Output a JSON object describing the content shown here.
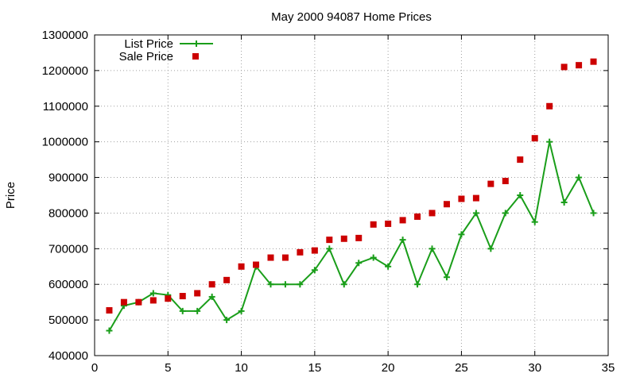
{
  "chart_data": {
    "type": "line",
    "title": "May 2000 94087 Home Prices",
    "xlabel": "",
    "ylabel": "Price",
    "xlim": [
      0,
      35
    ],
    "ylim": [
      400000,
      1300000
    ],
    "x_ticks": [
      "0",
      "5",
      "10",
      "15",
      "20",
      "25",
      "30",
      "35"
    ],
    "y_ticks": [
      "400000",
      "500000",
      "600000",
      "700000",
      "800000",
      "900000",
      "1000000",
      "1100000",
      "1200000",
      "1300000"
    ],
    "grid": true,
    "legend_position": "top-left",
    "series": [
      {
        "name": "List Price",
        "style": "linespoints",
        "marker": "plus",
        "color": "#1a9e1a",
        "x": [
          1,
          2,
          3,
          4,
          5,
          6,
          7,
          8,
          9,
          10,
          11,
          12,
          13,
          14,
          15,
          16,
          17,
          18,
          19,
          20,
          21,
          22,
          23,
          24,
          25,
          26,
          27,
          28,
          29,
          30,
          31,
          32,
          33,
          34
        ],
        "y": [
          470000,
          540000,
          550000,
          575000,
          570000,
          525000,
          525000,
          565000,
          500000,
          525000,
          650000,
          600000,
          600000,
          600000,
          640000,
          700000,
          600000,
          660000,
          675000,
          650000,
          725000,
          600000,
          700000,
          620000,
          740000,
          800000,
          700000,
          800000,
          850000,
          775000,
          1000000,
          830000,
          900000,
          800000
        ]
      },
      {
        "name": "Sale Price",
        "style": "points",
        "marker": "square",
        "color": "#cc0000",
        "x": [
          1,
          2,
          3,
          4,
          5,
          6,
          7,
          8,
          9,
          10,
          11,
          12,
          13,
          14,
          15,
          16,
          17,
          18,
          19,
          20,
          21,
          22,
          23,
          24,
          25,
          26,
          27,
          28,
          29,
          30,
          31,
          32,
          33,
          34
        ],
        "y": [
          527000,
          550000,
          550000,
          555000,
          560000,
          567000,
          575000,
          600000,
          612000,
          650000,
          655000,
          675000,
          675000,
          690000,
          695000,
          725000,
          728000,
          730000,
          768000,
          770000,
          780000,
          790000,
          800000,
          825000,
          840000,
          842000,
          882000,
          890000,
          950000,
          1010000,
          1100000,
          1210000,
          1215000,
          1225000
        ]
      }
    ]
  }
}
